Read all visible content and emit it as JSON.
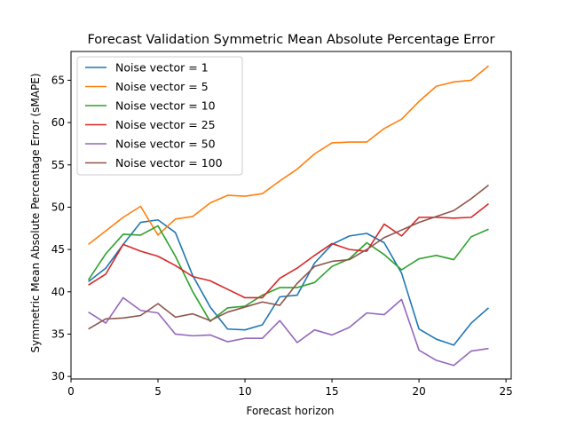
{
  "chart_data": {
    "type": "line",
    "title": "Forecast Validation Symmetric Mean Absolute Percentage Error",
    "xlabel": "Forecast horizon",
    "ylabel": "Symmetric Mean Absolute Percentage Error (sMAPE)",
    "xlim": [
      0,
      25.3
    ],
    "ylim": [
      29.7,
      68.4
    ],
    "xticks": [
      0,
      5,
      10,
      15,
      20,
      25
    ],
    "yticks": [
      30,
      35,
      40,
      45,
      50,
      55,
      60,
      65
    ],
    "grid": false,
    "legend_position": "top-left",
    "x": [
      1,
      2,
      3,
      4,
      5,
      6,
      7,
      8,
      9,
      10,
      11,
      12,
      13,
      14,
      15,
      16,
      17,
      18,
      19,
      20,
      21,
      22,
      23,
      24
    ],
    "series": [
      {
        "name": "Noise vector = 1",
        "color": "#1f77b4",
        "values": [
          41.2,
          42.8,
          45.6,
          48.2,
          48.5,
          47.0,
          41.9,
          38.2,
          35.6,
          35.5,
          36.1,
          39.4,
          39.6,
          43.4,
          45.6,
          46.6,
          46.9,
          45.8,
          42.2,
          35.6,
          34.4,
          33.7,
          36.3,
          38.1
        ]
      },
      {
        "name": "Noise vector = 5",
        "color": "#ff7f0e",
        "values": [
          45.6,
          47.2,
          48.8,
          50.1,
          46.7,
          48.6,
          48.9,
          50.5,
          51.4,
          51.3,
          51.6,
          53.1,
          54.5,
          56.3,
          57.6,
          57.7,
          57.7,
          59.3,
          60.4,
          62.5,
          64.3,
          64.8,
          65.0,
          66.7
        ]
      },
      {
        "name": "Noise vector = 10",
        "color": "#2ca02c",
        "values": [
          41.4,
          44.5,
          46.8,
          46.7,
          47.8,
          44.2,
          40.0,
          36.5,
          38.1,
          38.3,
          39.6,
          40.5,
          40.5,
          41.1,
          43.0,
          43.9,
          45.8,
          44.4,
          42.6,
          43.9,
          44.3,
          43.8,
          46.5,
          47.4
        ]
      },
      {
        "name": "Noise vector = 25",
        "color": "#d62728",
        "values": [
          40.8,
          42.1,
          45.6,
          44.8,
          44.2,
          43.1,
          41.8,
          41.3,
          40.3,
          39.3,
          39.3,
          41.6,
          42.8,
          44.3,
          45.7,
          45.0,
          44.8,
          48.0,
          46.6,
          48.8,
          48.8,
          48.7,
          48.8,
          50.4
        ]
      },
      {
        "name": "Noise vector = 50",
        "color": "#9467bd",
        "values": [
          37.6,
          36.3,
          39.3,
          37.8,
          37.5,
          35.0,
          34.8,
          34.9,
          34.1,
          34.5,
          34.5,
          36.6,
          34.0,
          35.5,
          34.9,
          35.8,
          37.5,
          37.3,
          39.1,
          33.1,
          31.9,
          31.3,
          33.0,
          33.3
        ]
      },
      {
        "name": "Noise vector = 100",
        "color": "#8c564b",
        "values": [
          35.6,
          36.8,
          36.9,
          37.2,
          38.6,
          37.0,
          37.4,
          36.6,
          37.6,
          38.2,
          38.8,
          38.4,
          41.0,
          43.0,
          43.6,
          43.8,
          45.0,
          46.4,
          47.3,
          48.2,
          48.9,
          49.6,
          51.0,
          52.6
        ]
      }
    ]
  }
}
